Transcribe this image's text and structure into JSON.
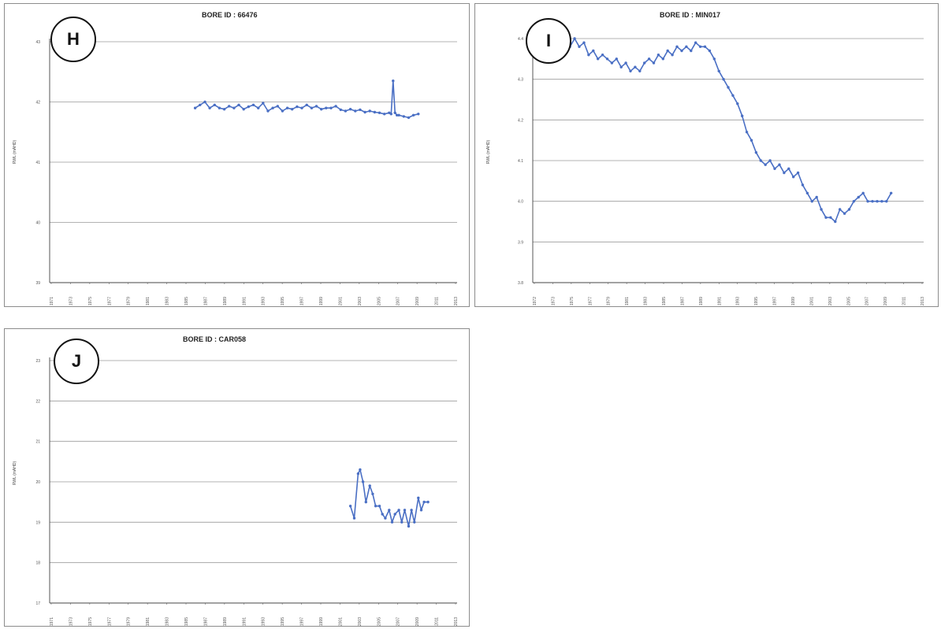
{
  "panels": [
    {
      "label": "H"
    },
    {
      "label": "I"
    },
    {
      "label": "J"
    }
  ],
  "chart_data": [
    {
      "type": "line",
      "title": "BORE ID  :  66476",
      "ylabel": "RWL (mAHD)",
      "xlabel": "",
      "ylim": [
        39,
        43
      ],
      "yticks": [
        "39",
        "40",
        "41",
        "42",
        "43"
      ],
      "xticks": [
        "1971",
        "1973",
        "1975",
        "1977",
        "1979",
        "1981",
        "1983",
        "1985",
        "1987",
        "1989",
        "1991",
        "1993",
        "1995",
        "1997",
        "1999",
        "2001",
        "2003",
        "2005",
        "2007",
        "2009",
        "2011",
        "2013"
      ],
      "xlim": [
        1971,
        2013
      ],
      "grid": true,
      "color": "#4a6fc4",
      "series": [
        {
          "x": [
            1986.0,
            1986.5,
            1987.0,
            1987.5,
            1988.0,
            1988.5,
            1989.0,
            1989.5,
            1990.0,
            1990.5,
            1991.0,
            1991.5,
            1992.0,
            1992.5,
            1993.0,
            1993.5,
            1994.0,
            1994.5,
            1995.0,
            1995.5,
            1996.0,
            1996.5,
            1997.0,
            1997.5,
            1998.0,
            1998.5,
            1999.0,
            1999.5,
            2000.0,
            2000.5,
            2001.0,
            2001.5,
            2002.0,
            2002.5,
            2003.0,
            2003.5,
            2004.0,
            2004.5,
            2005.0,
            2005.5,
            2006.0,
            2006.2,
            2006.4,
            2006.6,
            2006.8,
            2007.0,
            2007.5,
            2008.0,
            2008.5,
            2009.0
          ],
          "y": [
            41.9,
            41.95,
            42.0,
            41.9,
            41.95,
            41.9,
            41.88,
            41.93,
            41.9,
            41.95,
            41.88,
            41.92,
            41.95,
            41.9,
            41.98,
            41.85,
            41.9,
            41.93,
            41.85,
            41.9,
            41.88,
            41.92,
            41.9,
            41.95,
            41.9,
            41.93,
            41.88,
            41.9,
            41.9,
            41.93,
            41.87,
            41.85,
            41.88,
            41.85,
            41.87,
            41.83,
            41.85,
            41.83,
            41.82,
            41.8,
            41.82,
            41.8,
            42.35,
            41.82,
            41.78,
            41.78,
            41.76,
            41.74,
            41.78,
            41.8
          ]
        }
      ]
    },
    {
      "type": "line",
      "title": "BORE ID  :  MIN017",
      "ylabel": "RWL (mAHD)",
      "xlabel": "",
      "ylim": [
        3.8,
        4.4
      ],
      "yticks": [
        "3.8",
        "3.9",
        "4.0",
        "4.1",
        "4.2",
        "4.3",
        "4.4"
      ],
      "xticks": [
        "1972",
        "1973",
        "1975",
        "1977",
        "1979",
        "1981",
        "1983",
        "1985",
        "1987",
        "1989",
        "1991",
        "1993",
        "1995",
        "1997",
        "1999",
        "2001",
        "2003",
        "2005",
        "2007",
        "2009",
        "2011",
        "2013"
      ],
      "xlim": [
        1971,
        2013
      ],
      "grid": true,
      "color": "#4a6fc4",
      "series": [
        {
          "x": [
            1973.0,
            1973.5,
            1974.0,
            1974.5,
            1975.0,
            1975.5,
            1976.0,
            1976.5,
            1977.0,
            1977.5,
            1978.0,
            1978.5,
            1979.0,
            1979.5,
            1980.0,
            1980.5,
            1981.0,
            1981.5,
            1982.0,
            1982.5,
            1983.0,
            1983.5,
            1984.0,
            1984.5,
            1985.0,
            1985.5,
            1986.0,
            1986.5,
            1987.0,
            1987.5,
            1988.0,
            1988.5,
            1989.0,
            1989.5,
            1990.0,
            1990.5,
            1991.0,
            1991.5,
            1992.0,
            1992.5,
            1993.0,
            1993.5,
            1994.0,
            1994.5,
            1995.0,
            1995.5,
            1996.0,
            1996.5,
            1997.0,
            1997.5,
            1998.0,
            1998.5,
            1999.0,
            1999.5,
            2000.0,
            2000.5,
            2001.0,
            2001.5,
            2002.0,
            2002.5,
            2003.0,
            2003.5,
            2004.0,
            2004.5,
            2005.0,
            2005.5,
            2006.0,
            2006.5,
            2007.0,
            2007.5,
            2008.0,
            2008.5,
            2009.0,
            2009.5
          ],
          "y": [
            4.36,
            4.38,
            4.37,
            4.39,
            4.38,
            4.4,
            4.38,
            4.39,
            4.36,
            4.37,
            4.35,
            4.36,
            4.35,
            4.34,
            4.35,
            4.33,
            4.34,
            4.32,
            4.33,
            4.32,
            4.34,
            4.35,
            4.34,
            4.36,
            4.35,
            4.37,
            4.36,
            4.38,
            4.37,
            4.38,
            4.37,
            4.39,
            4.38,
            4.38,
            4.37,
            4.35,
            4.32,
            4.3,
            4.28,
            4.26,
            4.24,
            4.21,
            4.17,
            4.15,
            4.12,
            4.1,
            4.09,
            4.1,
            4.08,
            4.09,
            4.07,
            4.08,
            4.06,
            4.07,
            4.04,
            4.02,
            4.0,
            4.01,
            3.98,
            3.96,
            3.96,
            3.95,
            3.98,
            3.97,
            3.98,
            4.0,
            4.01,
            4.02,
            4.0,
            4.0,
            4.0,
            4.0,
            4.0,
            4.02
          ]
        }
      ]
    },
    {
      "type": "line",
      "title": "BORE ID  :  CAR058",
      "ylabel": "RWL (mAHD)",
      "xlabel": "",
      "ylim": [
        17,
        23
      ],
      "yticks": [
        "17",
        "18",
        "19",
        "20",
        "21",
        "22",
        "23"
      ],
      "xticks": [
        "1971",
        "1973",
        "1975",
        "1977",
        "1979",
        "1981",
        "1983",
        "1985",
        "1987",
        "1989",
        "1991",
        "1993",
        "1995",
        "1997",
        "1999",
        "2001",
        "2003",
        "2005",
        "2007",
        "2009",
        "2011",
        "2013"
      ],
      "xlim": [
        1971,
        2013
      ],
      "grid": true,
      "color": "#4a6fc4",
      "series": [
        {
          "x": [
            2002.0,
            2002.4,
            2002.8,
            2003.0,
            2003.3,
            2003.6,
            2004.0,
            2004.3,
            2004.6,
            2005.0,
            2005.3,
            2005.6,
            2006.0,
            2006.3,
            2006.6,
            2007.0,
            2007.3,
            2007.6,
            2008.0,
            2008.3,
            2008.6,
            2009.0,
            2009.3,
            2009.6,
            2010.0
          ],
          "y": [
            19.4,
            19.1,
            20.2,
            20.3,
            20.0,
            19.5,
            19.9,
            19.7,
            19.4,
            19.4,
            19.2,
            19.1,
            19.3,
            19.0,
            19.2,
            19.3,
            19.0,
            19.3,
            18.9,
            19.3,
            19.0,
            19.6,
            19.3,
            19.5,
            19.5
          ]
        }
      ]
    }
  ]
}
